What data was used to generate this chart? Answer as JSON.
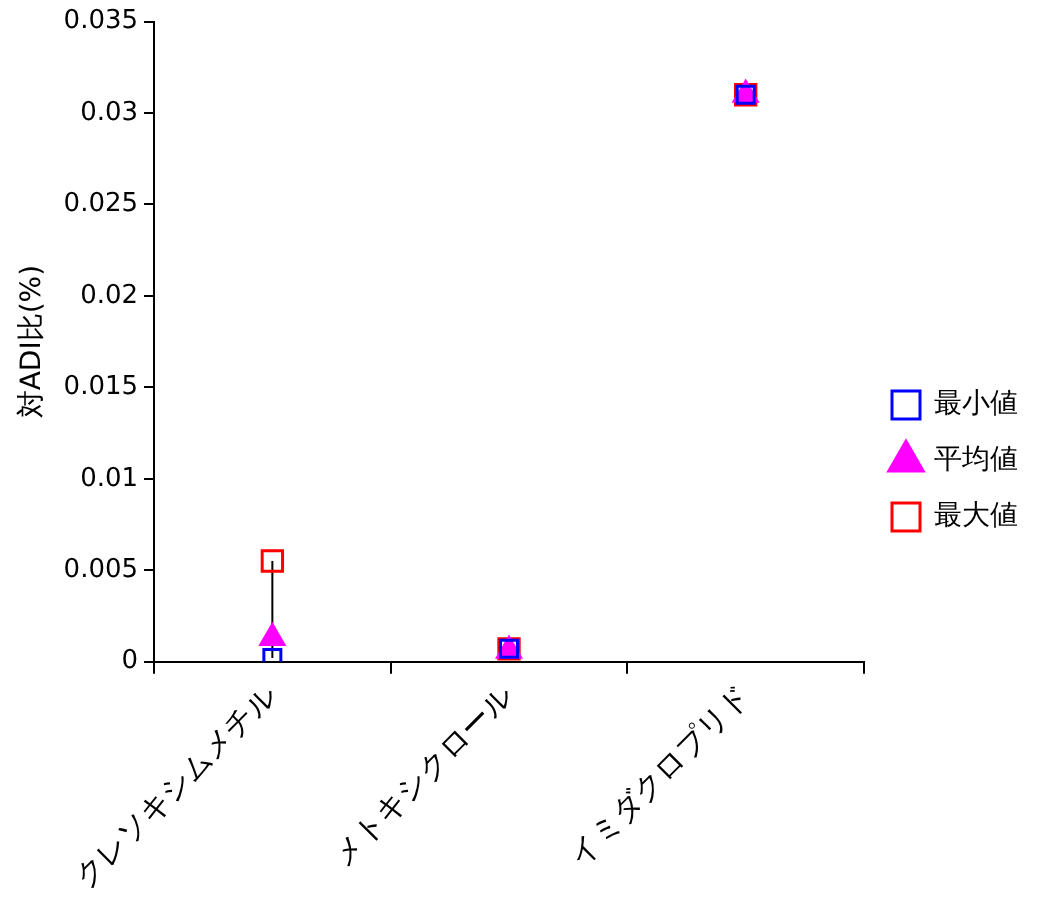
{
  "chart_data": {
    "type": "scatter",
    "ylabel": "対ADI比(%)",
    "categories": [
      "クレソキシムメチル",
      "メトキシクロール",
      "イミダクロプリド"
    ],
    "series": [
      {
        "type": "line",
        "color": "#000000",
        "marker": "none",
        "x": [
          "クレソキシムメチル",
          "クレソキシムメチル"
        ],
        "values": [
          0.0002,
          0.0055
        ]
      },
      {
        "name": "最大値",
        "color": "#ff0000",
        "marker": "square",
        "values": [
          0.0055,
          0.0007,
          0.031
        ]
      },
      {
        "name": "平均値",
        "color": "#ff00ff",
        "marker": "triangle",
        "values": [
          0.0013,
          0.0006,
          0.031
        ]
      },
      {
        "name": "最小値",
        "color": "#0000ff",
        "marker": "square",
        "values": [
          0.0002,
          0.0007,
          0.031
        ]
      }
    ],
    "ylim": [
      0,
      0.035
    ],
    "yticks": [
      0,
      0.005,
      0.01,
      0.015,
      0.02,
      0.025,
      0.03,
      0.035
    ],
    "grid": false,
    "legend": "right"
  }
}
